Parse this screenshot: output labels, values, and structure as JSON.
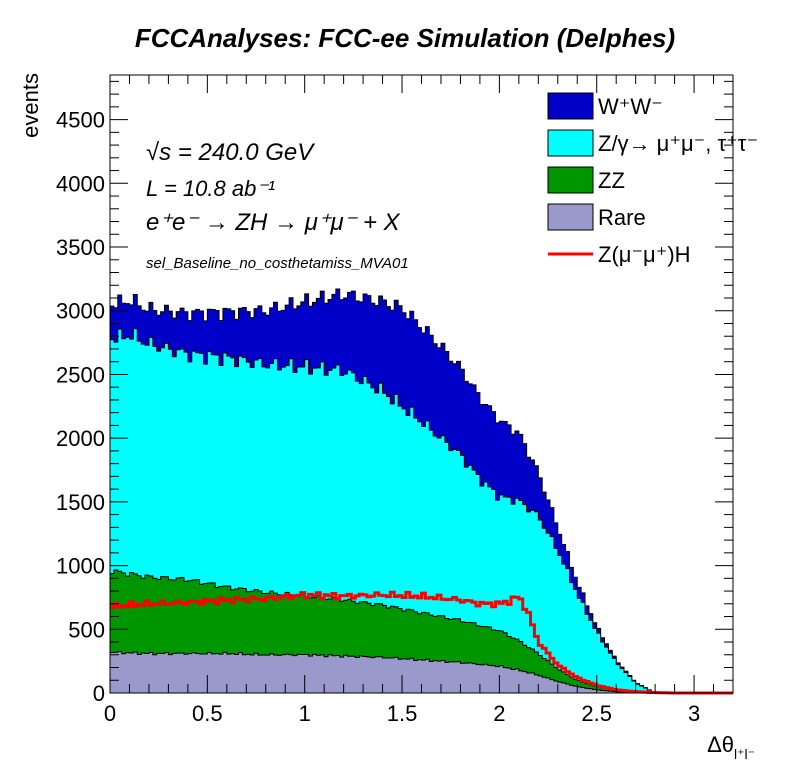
{
  "chart_data": {
    "type": "area",
    "title": "FCCAnalyses: FCC-ee Simulation (Delphes)",
    "xlabel": "Δθ_{l⁺l⁻}",
    "ylabel": "events",
    "xlim": [
      0,
      3.2
    ],
    "ylim": [
      0,
      4850
    ],
    "x_ticks": [
      "0",
      "0.5",
      "1",
      "1.5",
      "2",
      "2.5",
      "3"
    ],
    "y_ticks": [
      "0",
      "500",
      "1000",
      "1500",
      "2000",
      "2500",
      "3000",
      "3500",
      "4000",
      "4500"
    ],
    "bin_width": 0.02,
    "grid": false,
    "legend_position": "top-right",
    "annotations": {
      "energy": "√s = 240.0 GeV",
      "lumi": "L = 10.8 ab⁻¹",
      "process": "e⁺e⁻ → ZH → μ⁺μ⁻ + X",
      "selection": "sel_Baseline_no_costhetamiss_MVA01"
    },
    "stack_order": [
      "Rare",
      "ZZ",
      "Z/γ→ μ⁺μ⁻, τ⁺τ⁻",
      "W⁺W⁻"
    ],
    "series": [
      {
        "name": "W⁺W⁻",
        "kind": "stacked",
        "color": "#0000c8",
        "x": [
          0.0,
          0.2,
          0.4,
          0.6,
          0.8,
          1.0,
          1.2,
          1.4,
          1.5,
          1.7,
          1.9,
          2.0,
          2.1,
          2.2,
          2.3,
          2.4,
          2.5,
          2.6,
          2.7,
          2.8
        ],
        "values": [
          270,
          270,
          320,
          360,
          420,
          510,
          600,
          700,
          770,
          720,
          640,
          600,
          530,
          340,
          180,
          90,
          40,
          15,
          5,
          0
        ]
      },
      {
        "name": "Z/γ→ μ⁺μ⁻, τ⁺τ⁻",
        "kind": "stacked",
        "color": "#00ffff",
        "x": [
          0.0,
          0.05,
          0.1,
          0.2,
          0.4,
          0.6,
          0.8,
          1.0,
          1.2,
          1.4,
          1.6,
          1.8,
          1.9,
          2.0,
          2.1,
          2.2,
          2.3,
          2.4,
          2.5,
          2.6,
          2.7,
          2.8
        ],
        "values": [
          1830,
          1840,
          1880,
          1830,
          1770,
          1800,
          1790,
          1800,
          1800,
          1680,
          1500,
          1300,
          1150,
          1050,
          1100,
          1080,
          930,
          680,
          430,
          220,
          70,
          0
        ]
      },
      {
        "name": "ZZ",
        "kind": "stacked",
        "color": "#009600",
        "x": [
          0.0,
          0.2,
          0.4,
          0.6,
          0.8,
          1.0,
          1.2,
          1.4,
          1.6,
          1.8,
          2.0,
          2.1,
          2.2,
          2.3,
          2.4,
          2.5,
          2.6,
          2.7,
          2.8
        ],
        "values": [
          640,
          600,
          580,
          520,
          490,
          460,
          440,
          410,
          370,
          330,
          280,
          230,
          170,
          100,
          50,
          25,
          12,
          5,
          0
        ]
      },
      {
        "name": "Rare",
        "kind": "stacked",
        "color": "#9999cc",
        "x": [
          0.0,
          0.2,
          0.4,
          0.6,
          0.8,
          1.0,
          1.2,
          1.4,
          1.6,
          1.8,
          2.0,
          2.1,
          2.2,
          2.3,
          2.4,
          2.5,
          2.6,
          2.7,
          2.8
        ],
        "values": [
          320,
          310,
          310,
          310,
          300,
          300,
          290,
          280,
          260,
          240,
          210,
          180,
          140,
          90,
          50,
          25,
          10,
          3,
          0
        ]
      },
      {
        "name": "Z(μ⁻μ⁺)H",
        "kind": "line",
        "color": "#ff0000",
        "x": [
          0.0,
          0.1,
          0.2,
          0.4,
          0.6,
          0.8,
          1.0,
          1.2,
          1.4,
          1.6,
          1.8,
          1.9,
          2.0,
          2.05,
          2.1,
          2.15,
          2.2,
          2.3,
          2.4,
          2.5,
          2.6,
          2.7,
          2.8,
          2.9,
          3.2
        ],
        "values": [
          680,
          690,
          700,
          710,
          730,
          740,
          770,
          760,
          770,
          760,
          730,
          700,
          700,
          720,
          760,
          620,
          400,
          220,
          120,
          60,
          25,
          10,
          3,
          0,
          0
        ]
      }
    ]
  }
}
